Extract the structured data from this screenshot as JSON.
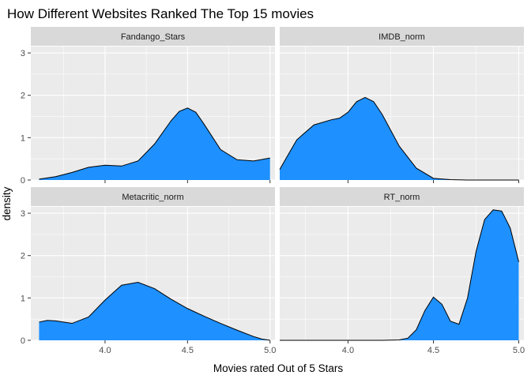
{
  "chart_data": {
    "type": "area",
    "title": "How Different Websites Ranked The Top 15 movies",
    "xlabel": "Movies rated Out of 5 Stars",
    "ylabel": "density",
    "ylim": [
      0,
      3.15
    ],
    "y_ticks": [
      "0",
      "1",
      "2",
      "3"
    ],
    "y_tick_values": [
      0,
      1,
      2,
      3
    ],
    "grid": true,
    "fill_color": "#1E90FF",
    "panel_background": "#EBEBEB",
    "strip_background": "#D9D9D9",
    "panels": [
      {
        "name": "Fandango_Stars",
        "xlim": [
          3.55,
          5.03
        ],
        "x_ticks": [
          "4.0",
          "4.5",
          "5.0"
        ],
        "x_tick_values": [
          4.0,
          4.5,
          5.0
        ],
        "x": [
          3.6,
          3.7,
          3.8,
          3.9,
          4.0,
          4.1,
          4.2,
          4.3,
          4.4,
          4.45,
          4.5,
          4.55,
          4.6,
          4.7,
          4.8,
          4.9,
          5.0
        ],
        "y": [
          0.02,
          0.08,
          0.18,
          0.3,
          0.35,
          0.33,
          0.45,
          0.85,
          1.4,
          1.62,
          1.7,
          1.6,
          1.32,
          0.72,
          0.48,
          0.45,
          0.52
        ]
      },
      {
        "name": "IMDB_norm",
        "xlim": [
          3.6,
          5.03
        ],
        "x_ticks": [
          "4.0",
          "4.5",
          "5.0"
        ],
        "x_tick_values": [
          4.0,
          4.5,
          5.0
        ],
        "x": [
          3.6,
          3.65,
          3.7,
          3.8,
          3.9,
          3.95,
          4.0,
          4.05,
          4.1,
          4.15,
          4.2,
          4.3,
          4.4,
          4.5,
          4.6,
          4.7,
          4.8,
          4.9,
          5.0
        ],
        "y": [
          0.25,
          0.6,
          0.95,
          1.3,
          1.42,
          1.46,
          1.6,
          1.85,
          1.95,
          1.85,
          1.55,
          0.8,
          0.28,
          0.04,
          0.01,
          0.0,
          0.0,
          0.0,
          0.0
        ]
      },
      {
        "name": "Metacritic_norm",
        "xlim": [
          3.55,
          5.03
        ],
        "x_ticks": [
          "4.0",
          "4.5",
          "5.0"
        ],
        "x_tick_values": [
          4.0,
          4.5,
          5.0
        ],
        "x": [
          3.6,
          3.65,
          3.7,
          3.8,
          3.9,
          4.0,
          4.1,
          4.2,
          4.3,
          4.4,
          4.5,
          4.6,
          4.7,
          4.8,
          4.9,
          4.95,
          5.0
        ],
        "y": [
          0.43,
          0.47,
          0.46,
          0.4,
          0.55,
          0.95,
          1.3,
          1.37,
          1.22,
          0.97,
          0.75,
          0.57,
          0.4,
          0.24,
          0.09,
          0.03,
          0.0
        ]
      },
      {
        "name": "RT_norm",
        "xlim": [
          3.6,
          5.03
        ],
        "x_ticks": [
          "4.0",
          "4.5",
          "5.0"
        ],
        "x_tick_values": [
          4.0,
          4.5,
          5.0
        ],
        "x": [
          3.6,
          4.0,
          4.2,
          4.3,
          4.35,
          4.4,
          4.45,
          4.5,
          4.55,
          4.6,
          4.65,
          4.7,
          4.75,
          4.8,
          4.85,
          4.9,
          4.95,
          5.0
        ],
        "y": [
          0.0,
          0.0,
          0.0,
          0.01,
          0.05,
          0.25,
          0.7,
          1.02,
          0.85,
          0.45,
          0.38,
          1.0,
          2.1,
          2.85,
          3.08,
          3.05,
          2.65,
          1.85
        ]
      }
    ]
  }
}
